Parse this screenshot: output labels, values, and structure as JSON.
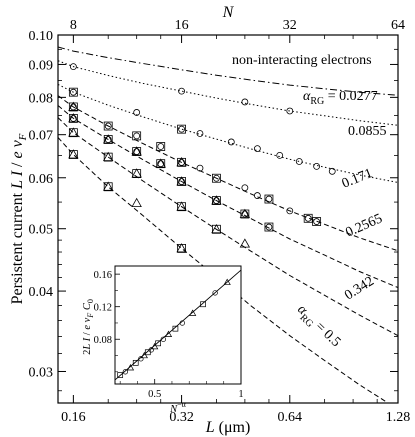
{
  "chart_data": [
    {
      "type": "line",
      "xlabel": "L (μm)",
      "ylabel": "Persistent current  L I / e v_F",
      "top_axis_label": "N",
      "xscale": "log",
      "yscale": "log",
      "xlim": [
        0.145,
        1.28
      ],
      "ylim": [
        0.0268,
        0.1
      ],
      "x_ticks": [
        0.16,
        0.32,
        0.64,
        1.28
      ],
      "x_tick_labels": [
        "0.16",
        "0.32",
        "0.64",
        "1.28"
      ],
      "top_ticks": [
        8,
        16,
        32,
        64
      ],
      "top_tick_labels": [
        "8",
        "16",
        "32",
        "64"
      ],
      "y_ticks": [
        0.03,
        0.04,
        0.05,
        0.06,
        0.07,
        0.08,
        0.09,
        0.1
      ],
      "y_tick_labels": [
        "0.03",
        "0.04",
        "0.05",
        "0.06",
        "0.07",
        "0.08",
        "0.09",
        "0.10"
      ],
      "curve_x": [
        0.145,
        0.16,
        0.2,
        0.25,
        0.32,
        0.4,
        0.5,
        0.64,
        0.8,
        1.0,
        1.28
      ],
      "series": [
        {
          "name": "non-interacting electrons",
          "style": "dashdot",
          "curve_y": [
            0.0958,
            0.0944,
            0.0922,
            0.0903,
            0.0883,
            0.0866,
            0.0851,
            0.0836,
            0.0825,
            0.0815,
            0.0806
          ],
          "markers": []
        },
        {
          "name": "α_RG = 0.0277",
          "style": "dotted",
          "curve_y": [
            0.0912,
            0.0893,
            0.0865,
            0.0841,
            0.0818,
            0.0798,
            0.078,
            0.0762,
            0.0749,
            0.0736,
            0.0724
          ],
          "markers": [
            {
              "shape": "circle",
              "x": [
                0.16,
                0.32,
                0.48,
                0.64
              ],
              "y": [
                0.0893,
                0.0818,
                0.0787,
                0.0762
              ]
            }
          ]
        },
        {
          "name": "0.0855",
          "style": "dotted",
          "curve_y": [
            0.0838,
            0.0815,
            0.0778,
            0.0746,
            0.0714,
            0.0689,
            0.0665,
            0.0641,
            0.0623,
            0.0606,
            0.059
          ],
          "markers": [
            {
              "shape": "circle",
              "x": [
                0.16,
                0.24,
                0.32,
                0.36,
                0.44,
                0.52,
                0.6,
                0.68,
                0.76,
                0.84
              ],
              "y": [
                0.0815,
                0.0758,
                0.0714,
                0.0703,
                0.0682,
                0.0666,
                0.065,
                0.0636,
                0.0625,
                0.0614
              ]
            },
            {
              "shape": "square",
              "x": [
                0.16,
                0.32
              ],
              "y": [
                0.0815,
                0.0714
              ]
            }
          ]
        },
        {
          "name": "0.171",
          "style": "dashed",
          "curve_y": [
            0.0805,
            0.0773,
            0.0722,
            0.0678,
            0.0634,
            0.0599,
            0.0566,
            0.0533,
            0.0508,
            0.0484,
            0.0462
          ],
          "markers": [
            {
              "shape": "circle",
              "x": [
                0.16,
                0.2,
                0.24,
                0.28,
                0.32,
                0.36,
                0.4,
                0.48,
                0.52,
                0.56,
                0.64,
                0.72,
                0.76
              ],
              "y": [
                0.0773,
                0.0722,
                0.0697,
                0.0671,
                0.0634,
                0.0621,
                0.0599,
                0.0579,
                0.0563,
                0.0556,
                0.0533,
                0.0519,
                0.0513
              ]
            },
            {
              "shape": "square",
              "x": [
                0.16,
                0.2,
                0.24,
                0.28,
                0.32,
                0.4,
                0.56,
                0.72,
                0.76
              ],
              "y": [
                0.0773,
                0.0722,
                0.0697,
                0.0671,
                0.0634,
                0.0599,
                0.0556,
                0.0519,
                0.0513
              ]
            },
            {
              "shape": "triangle",
              "x": [
                0.16,
                0.32
              ],
              "y": [
                0.0773,
                0.0634
              ]
            }
          ]
        },
        {
          "name": "0.2565",
          "style": "dashed",
          "curve_y": [
            0.0777,
            0.0742,
            0.0688,
            0.064,
            0.0592,
            0.0553,
            0.0518,
            0.0482,
            0.0455,
            0.0429,
            0.0405
          ],
          "markers": [
            {
              "shape": "circle",
              "x": [
                0.16,
                0.2,
                0.24,
                0.28,
                0.32,
                0.4,
                0.48,
                0.56
              ],
              "y": [
                0.0742,
                0.0688,
                0.0659,
                0.0631,
                0.0592,
                0.0553,
                0.0527,
                0.0503
              ]
            },
            {
              "shape": "square",
              "x": [
                0.16,
                0.2,
                0.24,
                0.28,
                0.32,
                0.4,
                0.48,
                0.56
              ],
              "y": [
                0.0742,
                0.0688,
                0.0659,
                0.0631,
                0.0592,
                0.0553,
                0.0527,
                0.0503
              ]
            },
            {
              "shape": "triangle",
              "x": [
                0.16,
                0.2,
                0.24,
                0.28,
                0.32,
                0.4,
                0.48
              ],
              "y": [
                0.0742,
                0.0688,
                0.0659,
                0.0631,
                0.0592,
                0.0553,
                0.0527
              ]
            }
          ]
        },
        {
          "name": "0.342",
          "style": "dashed",
          "curve_y": [
            0.0744,
            0.0705,
            0.0646,
            0.0593,
            0.0541,
            0.0499,
            0.0461,
            0.0423,
            0.0394,
            0.0367,
            0.0341
          ],
          "markers": [
            {
              "shape": "triangle",
              "x": [
                0.16,
                0.2,
                0.24,
                0.32,
                0.4,
                0.48
              ],
              "y": [
                0.0705,
                0.0646,
                0.0609,
                0.0541,
                0.0499,
                0.0474
              ]
            },
            {
              "shape": "square",
              "x": [
                0.16,
                0.2,
                0.24,
                0.32,
                0.4
              ],
              "y": [
                0.0705,
                0.0646,
                0.0609,
                0.0541,
                0.0499
              ]
            }
          ]
        },
        {
          "name": "α_RG = 0.5",
          "style": "dashed",
          "curve_y": [
            0.0693,
            0.0652,
            0.0581,
            0.0524,
            0.0466,
            0.0421,
            0.0379,
            0.0341,
            0.0312,
            0.0286,
            0.0262
          ],
          "markers": [
            {
              "shape": "triangle",
              "x": [
                0.16,
                0.2,
                0.24,
                0.32,
                0.4
              ],
              "y": [
                0.0652,
                0.0581,
                0.0548,
                0.0466,
                0.0421
              ]
            },
            {
              "shape": "square",
              "x": [
                0.16,
                0.2,
                0.32,
                0.4
              ],
              "y": [
                0.0652,
                0.0581,
                0.0466,
                0.0421
              ]
            }
          ]
        }
      ]
    },
    {
      "type": "scatter",
      "xlabel": "N^−α",
      "ylabel": "2L I / e v_F C_0",
      "xlim": [
        0.27,
        1.0
      ],
      "ylim": [
        0.025,
        0.17
      ],
      "x_tick_labels": [
        "0.5",
        "1"
      ],
      "y_tick_labels": [
        "0.08",
        "0.12",
        "0.16"
      ],
      "fit_line": {
        "x": [
          0.27,
          1.0
        ],
        "y": [
          0.03,
          0.165
        ]
      },
      "points": [
        {
          "x": 0.3,
          "y": 0.036
        },
        {
          "x": 0.33,
          "y": 0.04
        },
        {
          "x": 0.36,
          "y": 0.045
        },
        {
          "x": 0.39,
          "y": 0.051
        },
        {
          "x": 0.42,
          "y": 0.056
        },
        {
          "x": 0.44,
          "y": 0.06
        },
        {
          "x": 0.46,
          "y": 0.064
        },
        {
          "x": 0.48,
          "y": 0.067
        },
        {
          "x": 0.5,
          "y": 0.071
        },
        {
          "x": 0.52,
          "y": 0.075
        },
        {
          "x": 0.55,
          "y": 0.08
        },
        {
          "x": 0.58,
          "y": 0.086
        },
        {
          "x": 0.62,
          "y": 0.093
        },
        {
          "x": 0.66,
          "y": 0.1
        },
        {
          "x": 0.72,
          "y": 0.112
        },
        {
          "x": 0.78,
          "y": 0.123
        },
        {
          "x": 0.85,
          "y": 0.137
        },
        {
          "x": 0.92,
          "y": 0.15
        }
      ]
    }
  ],
  "annotations": {
    "non_interacting": "non-interacting electrons",
    "alpha_first": "α",
    "alpha_first_sub": "RG",
    "alpha_first_val": " = 0.0277",
    "v2": "0.0855",
    "v3": "0.171",
    "v4": "0.2565",
    "v5": "0.342",
    "alpha_last": "α",
    "alpha_last_sub": "RG",
    "alpha_last_val": " = 0.5"
  }
}
